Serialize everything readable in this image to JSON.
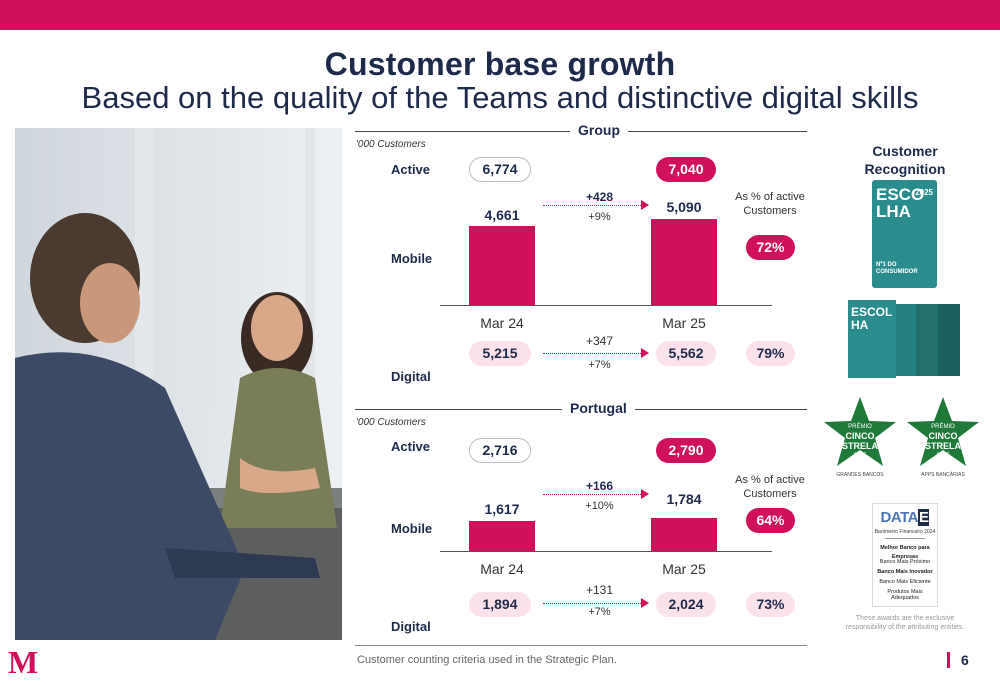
{
  "header": {
    "title": "Customer base growth",
    "subtitle": "Based on the quality of the Teams and distinctive digital skills"
  },
  "group": {
    "heading": "Group",
    "unit": "'000 Customers",
    "active_label": "Active",
    "mobile_label": "Mobile",
    "digital_label": "Digital",
    "active_prev": "6,774",
    "active_curr": "7,040",
    "mobile_prev": "4,661",
    "mobile_curr": "5,090",
    "mobile_delta": "+428",
    "mobile_delta_pct": "+9%",
    "mobile_share": "72%",
    "period_prev": "Mar 24",
    "period_curr": "Mar 25",
    "digital_prev": "5,215",
    "digital_curr": "5,562",
    "digital_delta": "+347",
    "digital_delta_pct": "+7%",
    "digital_share": "79%",
    "share_note": "As % of active Customers"
  },
  "portugal": {
    "heading": "Portugal",
    "unit": "'000 Customers",
    "active_label": "Active",
    "mobile_label": "Mobile",
    "digital_label": "Digital",
    "active_prev": "2,716",
    "active_curr": "2,790",
    "mobile_prev": "1,617",
    "mobile_curr": "1,784",
    "mobile_delta": "+166",
    "mobile_delta_pct": "+10%",
    "mobile_share": "64%",
    "period_prev": "Mar 24",
    "period_curr": "Mar 25",
    "digital_prev": "1,894",
    "digital_curr": "2,024",
    "digital_delta": "+131",
    "digital_delta_pct": "+7%",
    "digital_share": "73%",
    "share_note": "As % of active Customers"
  },
  "chart_data": [
    {
      "type": "bar",
      "title": "Group",
      "ylabel": "'000 Customers",
      "categories": [
        "Mar 24",
        "Mar 25"
      ],
      "series": [
        {
          "name": "Mobile",
          "values": [
            4661,
            5090
          ]
        }
      ]
    },
    {
      "type": "bar",
      "title": "Portugal",
      "ylabel": "'000 Customers",
      "categories": [
        "Mar 24",
        "Mar 25"
      ],
      "series": [
        {
          "name": "Mobile",
          "values": [
            1617,
            1784
          ]
        }
      ]
    }
  ],
  "recognition": {
    "title": "Customer Recognition",
    "award1_big": "ESCOLHA",
    "award1_year": "2025",
    "award1_sub": "Nº1 DO CONSUMIDOR",
    "award2_big": "ESCOLHA",
    "award3_small": "PRÉMIO",
    "award3_big": "CINCO ESTRELAS",
    "award3_year": "2025",
    "award3_caption": "GRANDES BANCOS",
    "award4_small": "PRÉMIO",
    "award4_big": "CINCO ESTRELAS",
    "award4_year": "2025",
    "award4_caption": "APPS BANCÁRIAS",
    "data_logo": "DATA",
    "data_logo_e": "E",
    "data_subtitle": "Barómetro Financeiro 2024",
    "data_lines": [
      "Melhor Banco para Empresas",
      "Banco Mais Próximo",
      "Banco Mais Inovador",
      "Banco Mais Eficiente",
      "Produtos Mais Adequados"
    ],
    "disclaimer": "These awards are the exclusive responsibility of the attributing entities."
  },
  "footer": {
    "note": "Customer counting criteria used in the Strategic Plan.",
    "page": "6",
    "logo": "M"
  },
  "colors": {
    "brand": "#d0105a",
    "navy": "#1e2a4a",
    "pink_light": "#fbe2ea",
    "award_green": "#1f7a3a",
    "award_teal": "#2a8c8c"
  }
}
